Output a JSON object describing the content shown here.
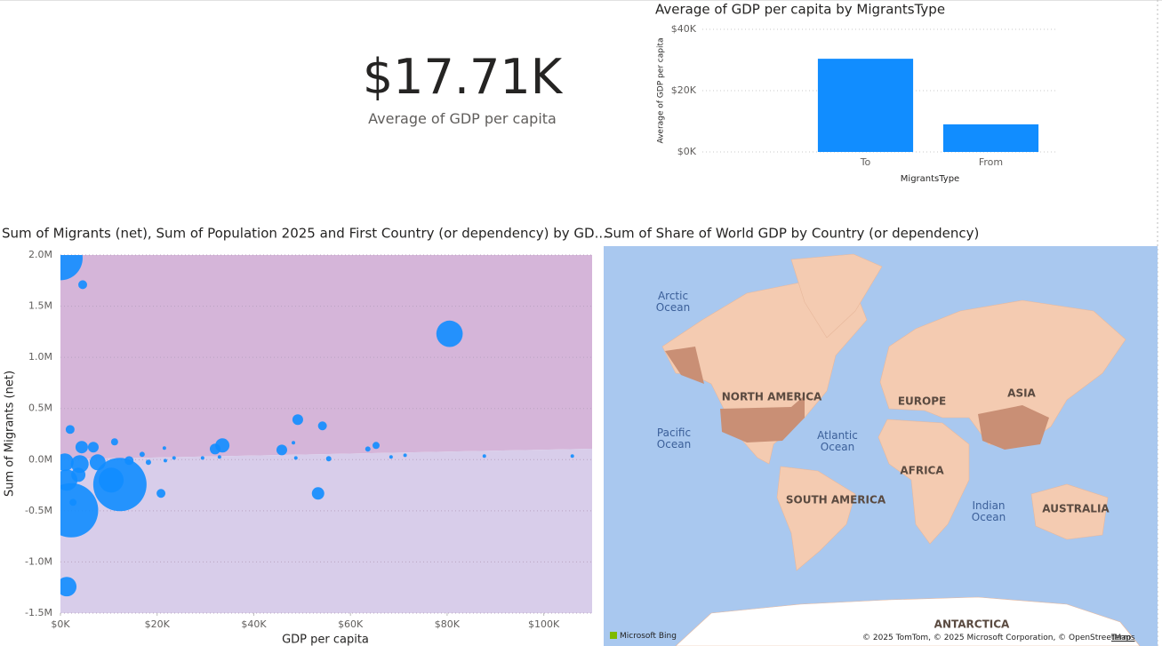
{
  "kpi": {
    "value": "$17.71K",
    "label": "Average of GDP per capita"
  },
  "chart_data": [
    {
      "type": "bar",
      "title": "Average of GDP per capita by MigrantsType",
      "xlabel": "MigrantsType",
      "ylabel": "Average of GDP per capita",
      "categories": [
        "To",
        "From"
      ],
      "values": [
        30400,
        9000
      ],
      "color": "#118DFF",
      "ylim": [
        0,
        40000
      ],
      "yticks": [
        {
          "value": 0,
          "label": "$0K"
        },
        {
          "value": 20000,
          "label": "$20K"
        },
        {
          "value": 40000,
          "label": "$40K"
        }
      ],
      "grid": true
    },
    {
      "type": "scatter",
      "title": "Sum of Migrants (net), Sum of Population 2025 and First Country (or dependency) by GD...",
      "xlabel": "GDP per capita",
      "ylabel": "Sum of Migrants (net)",
      "color": "#118DFF",
      "x": [
        0,
        4600,
        80500,
        2000,
        49100,
        54200,
        33500,
        32000,
        4400,
        6800,
        11200,
        16900,
        21500,
        23500,
        45800,
        48200,
        63600,
        65300,
        900,
        4000,
        1300,
        3700,
        10500,
        14200,
        18200,
        21700,
        29400,
        32900,
        48700,
        55500,
        68400,
        71300,
        87700,
        105900,
        20800,
        53300,
        1300,
        7700,
        2600,
        12300,
        2200
      ],
      "values": [
        1970000,
        1710000,
        1230000,
        295000,
        391000,
        330000,
        139000,
        104000,
        122000,
        122000,
        174000,
        52000,
        113000,
        17000,
        95000,
        165000,
        104000,
        139000,
        -26000,
        -43000,
        -200000,
        -148000,
        -200000,
        -9000,
        -26000,
        -9000,
        17000,
        26000,
        17000,
        9000,
        26000,
        43000,
        35000,
        35000,
        -330000,
        -330000,
        -1241000,
        -26000,
        -417000,
        -243000,
        -495000
      ],
      "sizes": [
        980000000,
        39000000,
        347000000,
        39000000,
        57000000,
        39000000,
        100000000,
        57000000,
        77000000,
        57000000,
        25000000,
        14000000,
        6000000,
        6000000,
        57000000,
        6000000,
        14000000,
        25000000,
        157000000,
        157000000,
        227000000,
        100000000,
        309000000,
        39000000,
        14000000,
        6000000,
        6000000,
        6000000,
        6000000,
        14000000,
        6000000,
        6000000,
        6000000,
        6000000,
        39000000,
        77000000,
        190000000,
        127000000,
        25000000,
        1416000000,
        1464000000
      ],
      "xlim": [
        0,
        110000
      ],
      "xticks": [
        {
          "value": 0,
          "label": "$0K"
        },
        {
          "value": 20000,
          "label": "$20K"
        },
        {
          "value": 40000,
          "label": "$40K"
        },
        {
          "value": 60000,
          "label": "$60K"
        },
        {
          "value": 80000,
          "label": "$80K"
        },
        {
          "value": 100000,
          "label": "$100K"
        }
      ],
      "ylim": [
        -1500000,
        2000000
      ],
      "yticks": [
        {
          "value": 2000000,
          "label": "2.0M"
        },
        {
          "value": 1500000,
          "label": "1.5M"
        },
        {
          "value": 1000000,
          "label": "1.0M"
        },
        {
          "value": 500000,
          "label": "0.5M"
        },
        {
          "value": 0,
          "label": "0.0M"
        },
        {
          "value": -500000,
          "label": "-0.5M"
        },
        {
          "value": -1000000,
          "label": "-1.0M"
        },
        {
          "value": -1500000,
          "label": "-1.5M"
        }
      ],
      "grid": true
    }
  ],
  "map": {
    "title": "Sum of Share of World GDP by Country (or dependency)",
    "labels": [
      "Arctic Ocean",
      "NORTH AMERICA",
      "EUROPE",
      "ASIA",
      "Pacific Ocean",
      "Atlantic Ocean",
      "AFRICA",
      "SOUTH AMERICA",
      "Indian Ocean",
      "AUSTRALIA",
      "ANTARCTICA"
    ],
    "logo": "Microsoft Bing",
    "attribution": "© 2025 TomTom, © 2025 Microsoft Corporation, © OpenStreetMap",
    "terms": "Terms"
  }
}
